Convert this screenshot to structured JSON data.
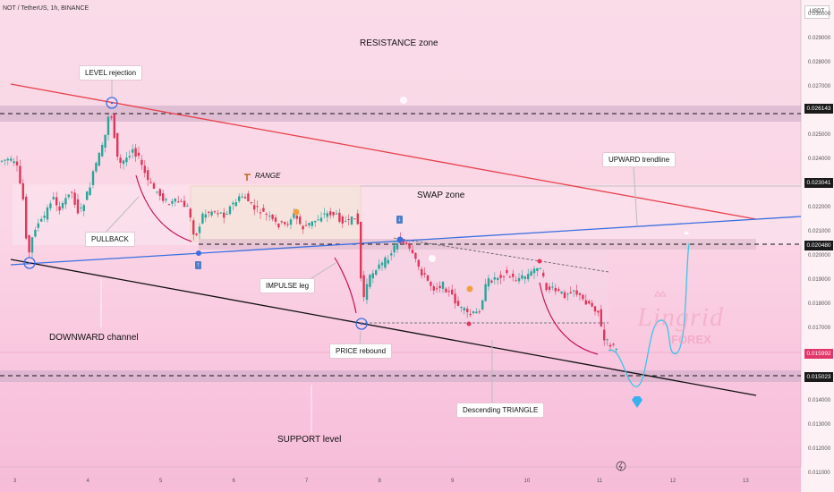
{
  "header": {
    "title": "NOT / TetherUS, 1h, BINANCE",
    "currency_button": "USDT"
  },
  "annotations": {
    "resistance_zone": "RESISTANCE zone",
    "level_rejection": "LEVEL rejection",
    "range": "RANGE",
    "swap_zone": "SWAP zone",
    "upward_trendline": "UPWARD trendline",
    "pullback": "PULLBACK",
    "impulse_leg": "IMPULSE leg",
    "downward_channel": "DOWNWARD channel",
    "price_rebound": "PRICE rebound",
    "descending_triangle": "Descending TRIANGLE",
    "support_level": "SUPPORT level"
  },
  "watermark": {
    "brand": "Lingrid",
    "sub": "FOREX"
  },
  "price_axis": {
    "ticks": [
      "0.030000",
      "0.029000",
      "0.028000",
      "0.027000",
      "0.025000",
      "0.024000",
      "0.022000",
      "0.021000",
      "0.020000",
      "0.019000",
      "0.018000",
      "0.017000",
      "0.014000",
      "0.013000",
      "0.012000",
      "0.011000"
    ],
    "tags": [
      {
        "value": "0.026143",
        "color": "#1a1a1a"
      },
      {
        "value": "0.023041",
        "color": "#1a1a1a"
      },
      {
        "value": "0.020480",
        "color": "#1a1a1a"
      },
      {
        "value": "0.015992",
        "color": "#e0366a"
      },
      {
        "value": "0.015023",
        "color": "#1a1a1a"
      }
    ]
  },
  "time_axis": {
    "ticks": [
      "3",
      "4",
      "5",
      "6",
      "7",
      "8",
      "9",
      "10",
      "11",
      "12",
      "13"
    ]
  },
  "colors": {
    "bull": "#26a69a",
    "bear": "#e0365a",
    "resistance_line": "#e8404a",
    "trendline": "#3a6fe0",
    "channel": "#111111",
    "projection": "#38c6e6"
  },
  "icons": [
    "level-marker-icon",
    "arrow-up-badge-icon",
    "arrow-down-badge-icon",
    "hammer-icon",
    "snail-icon",
    "diamond-icon",
    "lightning-icon",
    "crown-icon"
  ]
}
